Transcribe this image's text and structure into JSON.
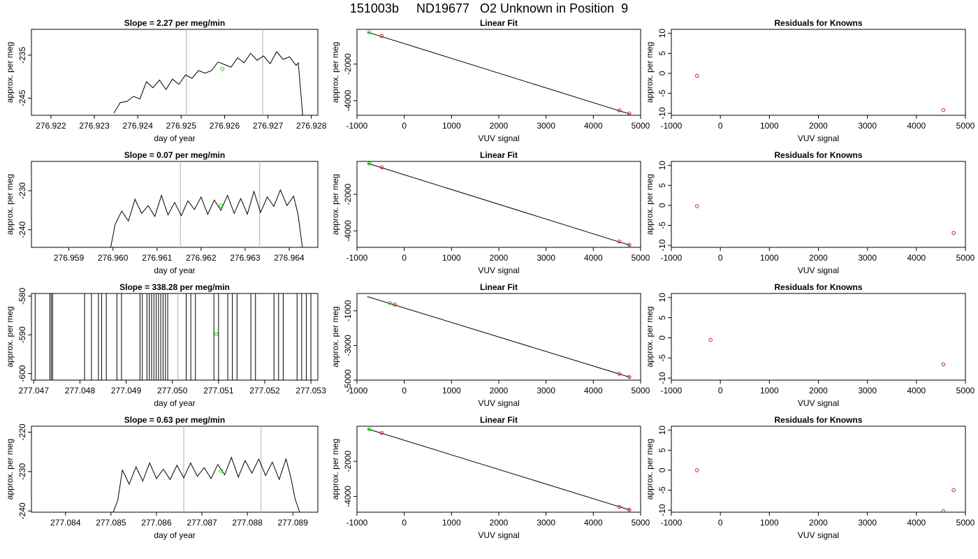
{
  "page_title": "151003b     ND19677   O2 Unknown in Position  9",
  "colors": {
    "trace": "#000000",
    "marker_green": "#00dd00",
    "marker_red": "#cc2222",
    "vline": "#bbbbbb",
    "frame": "#000000"
  },
  "chart_data": [
    {
      "panel": "row1-time-series",
      "type": "line",
      "title": "Slope =  2.27  per meg/min",
      "xlabel": "day of year",
      "ylabel": "approx. per meg",
      "xlim": [
        276.92155,
        276.92815
      ],
      "ylim": [
        -249,
        -229
      ],
      "xticks": [
        "276.922",
        "276.923",
        "276.924",
        "276.925",
        "276.926",
        "276.927",
        "276.928"
      ],
      "yticks": [
        "-235",
        "-245"
      ],
      "vlines": [
        276.92512,
        276.92688
      ],
      "series": [
        {
          "x": [
            276.92345,
            276.92355,
            276.9236,
            276.92375,
            276.9239,
            276.92405,
            276.9242,
            276.92435,
            276.9245,
            276.92465,
            276.9248,
            276.92495,
            276.9251,
            276.92525,
            276.9254,
            276.92555,
            276.9257,
            276.92585,
            276.926,
            276.92615,
            276.9263,
            276.92645,
            276.9266,
            276.92675,
            276.9269,
            276.92705,
            276.9272,
            276.92735,
            276.9275,
            276.92765,
            276.9277,
            276.92775,
            276.9278
          ],
          "y": [
            -248.5,
            -246.8,
            -246.0,
            -245.8,
            -244.6,
            -245.2,
            -241.2,
            -242.6,
            -240.8,
            -243.0,
            -240.6,
            -241.8,
            -239.6,
            -240.4,
            -238.6,
            -239.2,
            -238.6,
            -236.6,
            -237.2,
            -237.8,
            -235.6,
            -236.8,
            -234.6,
            -236.2,
            -235.2,
            -237.0,
            -234.2,
            -236.0,
            -235.4,
            -237.4,
            -236.8,
            -243.0,
            -249.0
          ]
        }
      ],
      "points_green": [
        {
          "x": 276.92595,
          "y": -238.2
        }
      ],
      "points_red": []
    },
    {
      "panel": "row1-linear-fit",
      "type": "scatter",
      "title": "Linear Fit",
      "xlabel": "VUV signal",
      "ylabel": "approx. per meg",
      "xlim": [
        -1000,
        5000
      ],
      "ylim": [
        -4800,
        -100
      ],
      "xticks": [
        "-1000",
        "0",
        "1000",
        "2000",
        "3000",
        "4000",
        "5000"
      ],
      "yticks": [
        "-2000",
        "-4000"
      ],
      "fit_line": [
        [
          -780,
          -250
        ],
        [
          4780,
          -4740
        ]
      ],
      "points_green": [
        {
          "x": -740,
          "y": -270
        }
      ],
      "points_red": [
        {
          "x": -475,
          "y": -470
        },
        {
          "x": 4550,
          "y": -4530
        },
        {
          "x": 4760,
          "y": -4700
        }
      ]
    },
    {
      "panel": "row1-residuals",
      "type": "scatter",
      "title": "Residuals for Knowns",
      "xlabel": "VUV signal",
      "ylabel": "approx. per meg",
      "xlim": [
        -1000,
        5000
      ],
      "ylim": [
        -10.5,
        11
      ],
      "xticks": [
        "-1000",
        "0",
        "1000",
        "2000",
        "3000",
        "4000",
        "5000"
      ],
      "yticks": [
        "10",
        "5",
        "0",
        "-5",
        "-10"
      ],
      "points_green": [],
      "points_red": [
        {
          "x": -475,
          "y": -0.6
        },
        {
          "x": 4550,
          "y": -9.2
        }
      ]
    },
    {
      "panel": "row2-time-series",
      "type": "line",
      "title": "Slope =  0.07  per meg/min",
      "xlabel": "day of year",
      "ylabel": "approx. per meg",
      "xlim": [
        276.95815,
        276.96465
      ],
      "ylim": [
        -244.5,
        -222.5
      ],
      "xticks": [
        "276.959",
        "276.960",
        "276.961",
        "276.962",
        "276.963",
        "276.964"
      ],
      "yticks": [
        "-230",
        "-240"
      ],
      "vlines": [
        276.96153,
        276.96333
      ],
      "series": [
        {
          "x": [
            276.95995,
            276.96005,
            276.9602,
            276.96035,
            276.9605,
            276.96065,
            276.9608,
            276.96095,
            276.9611,
            276.96125,
            276.9614,
            276.96155,
            276.9617,
            276.96185,
            276.962,
            276.96215,
            276.9623,
            276.96245,
            276.9626,
            276.96275,
            276.9629,
            276.96305,
            276.9632,
            276.96335,
            276.9635,
            276.96365,
            276.9638,
            276.96395,
            276.9641,
            276.9642,
            276.9643
          ],
          "y": [
            -244.5,
            -238.6,
            -235.2,
            -237.8,
            -232.2,
            -235.8,
            -233.8,
            -236.6,
            -231.2,
            -236.2,
            -233.0,
            -236.4,
            -232.6,
            -234.8,
            -231.6,
            -236.0,
            -232.4,
            -235.0,
            -231.2,
            -235.8,
            -232.0,
            -236.0,
            -230.2,
            -235.6,
            -231.6,
            -234.0,
            -229.8,
            -233.8,
            -231.4,
            -236.0,
            -244.5
          ]
        }
      ],
      "points_green": [
        {
          "x": 276.96245,
          "y": -233.8
        }
      ],
      "points_red": []
    },
    {
      "panel": "row2-linear-fit",
      "type": "scatter",
      "title": "Linear Fit",
      "xlabel": "VUV signal",
      "ylabel": "approx. per meg",
      "xlim": [
        -1000,
        5000
      ],
      "ylim": [
        -4900,
        -200
      ],
      "xticks": [
        "-1000",
        "0",
        "1000",
        "2000",
        "3000",
        "4000",
        "5000"
      ],
      "yticks": [
        "-2000",
        "-4000"
      ],
      "fit_line": [
        [
          -780,
          -300
        ],
        [
          4780,
          -4790
        ]
      ],
      "points_green": [
        {
          "x": -740,
          "y": -320
        }
      ],
      "points_red": [
        {
          "x": -475,
          "y": -520
        },
        {
          "x": 4550,
          "y": -4580
        },
        {
          "x": 4760,
          "y": -4760
        }
      ]
    },
    {
      "panel": "row2-residuals",
      "type": "scatter",
      "title": "Residuals for Knowns",
      "xlabel": "VUV signal",
      "ylabel": "approx. per meg",
      "xlim": [
        -1000,
        5000
      ],
      "ylim": [
        -10.5,
        11
      ],
      "xticks": [
        "-1000",
        "0",
        "1000",
        "2000",
        "3000",
        "4000",
        "5000"
      ],
      "yticks": [
        "10",
        "5",
        "0",
        "-5",
        "-10"
      ],
      "points_green": [],
      "points_red": [
        {
          "x": -475,
          "y": -0.2
        },
        {
          "x": 4760,
          "y": -6.9
        }
      ]
    },
    {
      "panel": "row3-time-series",
      "type": "line",
      "title": "Slope =  338.28  per meg/min",
      "xlabel": "day of year",
      "ylabel": "approx. per meg",
      "xlim": [
        277.04695,
        277.05315
      ],
      "ylim": [
        -601.7,
        -579.3
      ],
      "xticks": [
        "277.047",
        "277.048",
        "277.049",
        "277.050",
        "277.051",
        "277.052",
        "277.053"
      ],
      "yticks": [
        "-580",
        "-590",
        "-600"
      ],
      "vlines": [
        277.05012
      ],
      "spikes": [
        277.04703,
        277.04735,
        277.04738,
        277.04741,
        277.0481,
        277.04825,
        277.0484,
        277.04847,
        277.04857,
        277.0488,
        277.0489,
        277.0493,
        277.04935,
        277.04945,
        277.0495,
        277.04955,
        277.0496,
        277.04965,
        277.0497,
        277.04975,
        277.0498,
        277.04985,
        277.0499,
        277.0503,
        277.0504,
        277.0505,
        277.0509,
        277.051,
        277.0512,
        277.0513,
        277.0514,
        277.0517,
        277.0518,
        277.0522,
        277.0523,
        277.0524,
        277.0527,
        277.0528,
        277.0529,
        277.053
      ],
      "points_green": [
        {
          "x": 277.05095,
          "y": -589.8
        }
      ],
      "points_red": []
    },
    {
      "panel": "row3-linear-fit",
      "type": "scatter",
      "title": "Linear Fit",
      "xlabel": "VUV signal",
      "ylabel": "approx. per meg",
      "xlim": [
        -1000,
        5000
      ],
      "ylim": [
        -5000,
        0
      ],
      "xticks": [
        "-1000",
        "0",
        "1000",
        "2000",
        "3000",
        "4000",
        "5000"
      ],
      "yticks": [
        "-1000",
        "-3000",
        "-5000"
      ],
      "fit_line": [
        [
          -780,
          -180
        ],
        [
          4780,
          -4840
        ]
      ],
      "points_green": [
        {
          "x": -300,
          "y": -560
        }
      ],
      "points_red": [
        {
          "x": -200,
          "y": -640
        },
        {
          "x": 4550,
          "y": -4640
        },
        {
          "x": 4760,
          "y": -4820
        }
      ]
    },
    {
      "panel": "row3-residuals",
      "type": "scatter",
      "title": "Residuals for Knowns",
      "xlabel": "VUV signal",
      "ylabel": "approx. per meg",
      "xlim": [
        -1000,
        5000
      ],
      "ylim": [
        -10.5,
        11
      ],
      "xticks": [
        "-1000",
        "0",
        "1000",
        "2000",
        "3000",
        "4000",
        "5000"
      ],
      "yticks": [
        "10",
        "5",
        "0",
        "-5",
        "-10"
      ],
      "points_green": [],
      "points_red": [
        {
          "x": -200,
          "y": -0.5
        },
        {
          "x": 4550,
          "y": -6.6
        }
      ]
    },
    {
      "panel": "row4-time-series",
      "type": "line",
      "title": "Slope =  0.63  per meg/min",
      "xlabel": "day of year",
      "ylabel": "approx. per meg",
      "xlim": [
        277.08325,
        277.08955
      ],
      "ylim": [
        -240.3,
        -218.5
      ],
      "xticks": [
        "277.084",
        "277.085",
        "277.086",
        "277.087",
        "277.088",
        "277.089"
      ],
      "yticks": [
        "-220",
        "-230",
        "-240"
      ],
      "vlines": [
        277.0866,
        277.0883
      ],
      "series": [
        {
          "x": [
            277.08505,
            277.08515,
            277.08525,
            277.0854,
            277.08555,
            277.0857,
            277.08585,
            277.086,
            277.08615,
            277.0863,
            277.08645,
            277.0866,
            277.08675,
            277.0869,
            277.08705,
            277.0872,
            277.08735,
            277.0875,
            277.08765,
            277.0878,
            277.08795,
            277.0881,
            277.08825,
            277.0884,
            277.08855,
            277.0887,
            277.08885,
            277.08895,
            277.089,
            277.08905,
            277.08915
          ],
          "y": [
            -240.3,
            -237.2,
            -229.6,
            -233.2,
            -228.8,
            -232.4,
            -227.8,
            -231.8,
            -229.4,
            -232.0,
            -228.4,
            -231.6,
            -227.8,
            -231.2,
            -229.0,
            -231.8,
            -228.2,
            -230.8,
            -226.4,
            -231.4,
            -227.2,
            -230.4,
            -226.8,
            -231.0,
            -227.6,
            -232.0,
            -226.8,
            -231.2,
            -234.0,
            -237.0,
            -240.3
          ]
        }
      ],
      "points_green": [
        {
          "x": 277.08742,
          "y": -229.8
        }
      ],
      "points_red": []
    },
    {
      "panel": "row4-linear-fit",
      "type": "scatter",
      "title": "Linear Fit",
      "xlabel": "VUV signal",
      "ylabel": "approx. per meg",
      "xlim": [
        -1000,
        5000
      ],
      "ylim": [
        -4900,
        0
      ],
      "xticks": [
        "-1000",
        "0",
        "1000",
        "2000",
        "3000",
        "4000",
        "5000"
      ],
      "yticks": [
        "-2000",
        "-4000"
      ],
      "fit_line": [
        [
          -780,
          -150
        ],
        [
          4780,
          -4780
        ]
      ],
      "points_green": [
        {
          "x": -740,
          "y": -170
        }
      ],
      "points_red": [
        {
          "x": -475,
          "y": -380
        },
        {
          "x": 4550,
          "y": -4600
        },
        {
          "x": 4760,
          "y": -4760
        }
      ]
    },
    {
      "panel": "row4-residuals",
      "type": "scatter",
      "title": "Residuals for Knowns",
      "xlabel": "VUV signal",
      "ylabel": "approx. per meg",
      "xlim": [
        -1000,
        5000
      ],
      "ylim": [
        -10.5,
        11
      ],
      "xticks": [
        "-1000",
        "0",
        "1000",
        "2000",
        "3000",
        "4000",
        "5000"
      ],
      "yticks": [
        "10",
        "5",
        "0",
        "-5",
        "-10"
      ],
      "points_green": [],
      "points_red": [
        {
          "x": -475,
          "y": 0.0
        },
        {
          "x": 4760,
          "y": -5.0
        },
        {
          "x": 4550,
          "y": -10.3
        }
      ]
    }
  ]
}
